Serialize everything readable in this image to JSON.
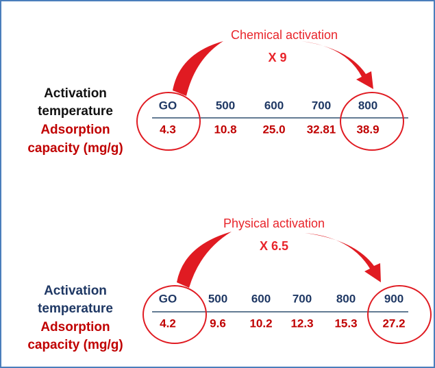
{
  "panels": [
    {
      "title": "Chemical activation",
      "multiplier": "X 9",
      "temperature_label": [
        "Activation",
        "temperature"
      ],
      "capacity_label": [
        "Adsorption",
        "capacity (mg/g)"
      ],
      "temperatures": [
        "GO",
        "500",
        "600",
        "700",
        "800"
      ],
      "capacities": [
        "4.3",
        "10.8",
        "25.0",
        "32.81",
        "38.9"
      ]
    },
    {
      "title": "Physical activation",
      "multiplier": "X 6.5",
      "temperature_label": [
        "Activation",
        "temperature"
      ],
      "capacity_label": [
        "Adsorption",
        "capacity (mg/g)"
      ],
      "temperatures": [
        "GO",
        "500",
        "600",
        "700",
        "800",
        "900"
      ],
      "capacities": [
        "4.2",
        "9.6",
        "10.2",
        "12.3",
        "15.3",
        "27.2"
      ]
    }
  ]
}
